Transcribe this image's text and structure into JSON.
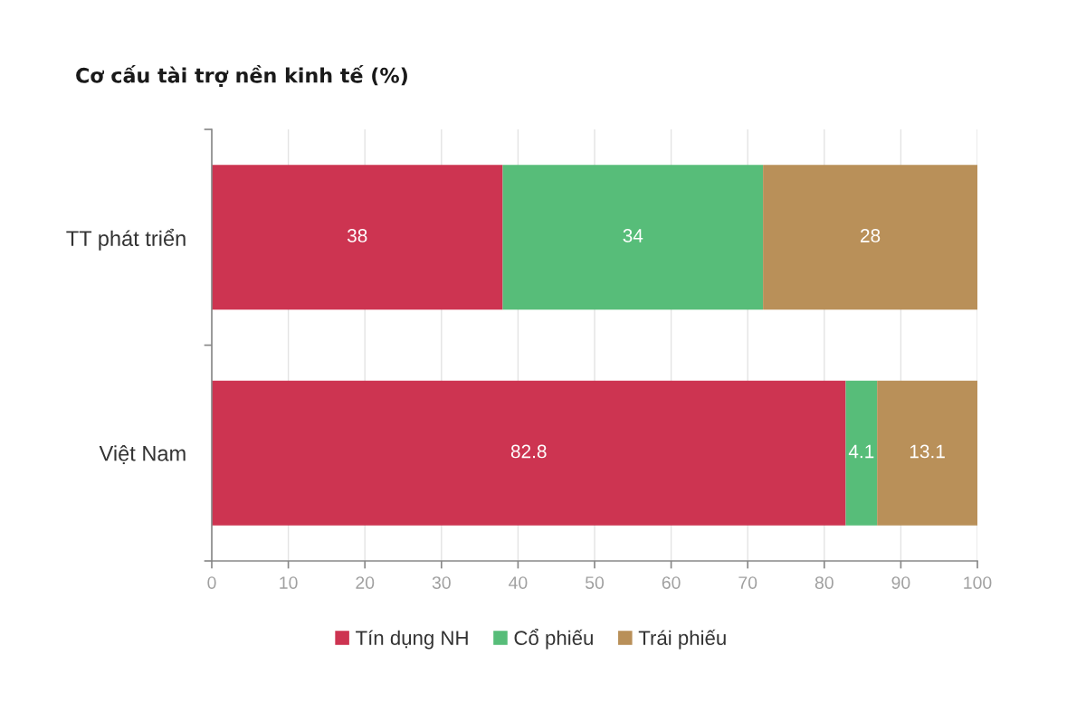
{
  "chart_data": {
    "type": "bar",
    "orientation": "horizontal",
    "stacked": true,
    "title": "Cơ cấu tài trợ nền kinh tế (%)",
    "categories": [
      "TT phát triển",
      "Việt Nam"
    ],
    "series": [
      {
        "name": "Tín dụng NH",
        "color": "#cd3451",
        "values": [
          38,
          82.8
        ]
      },
      {
        "name": "Cổ phiếu",
        "color": "#57bd79",
        "values": [
          34,
          4.1
        ]
      },
      {
        "name": "Trái phiếu",
        "color": "#b99059",
        "values": [
          28,
          13.1
        ]
      }
    ],
    "xlim": [
      0,
      100
    ],
    "xticks": [
      0,
      10,
      20,
      30,
      40,
      50,
      60,
      70,
      80,
      90,
      100
    ],
    "grid": "x",
    "legend": "bottom",
    "data_labels": true
  }
}
